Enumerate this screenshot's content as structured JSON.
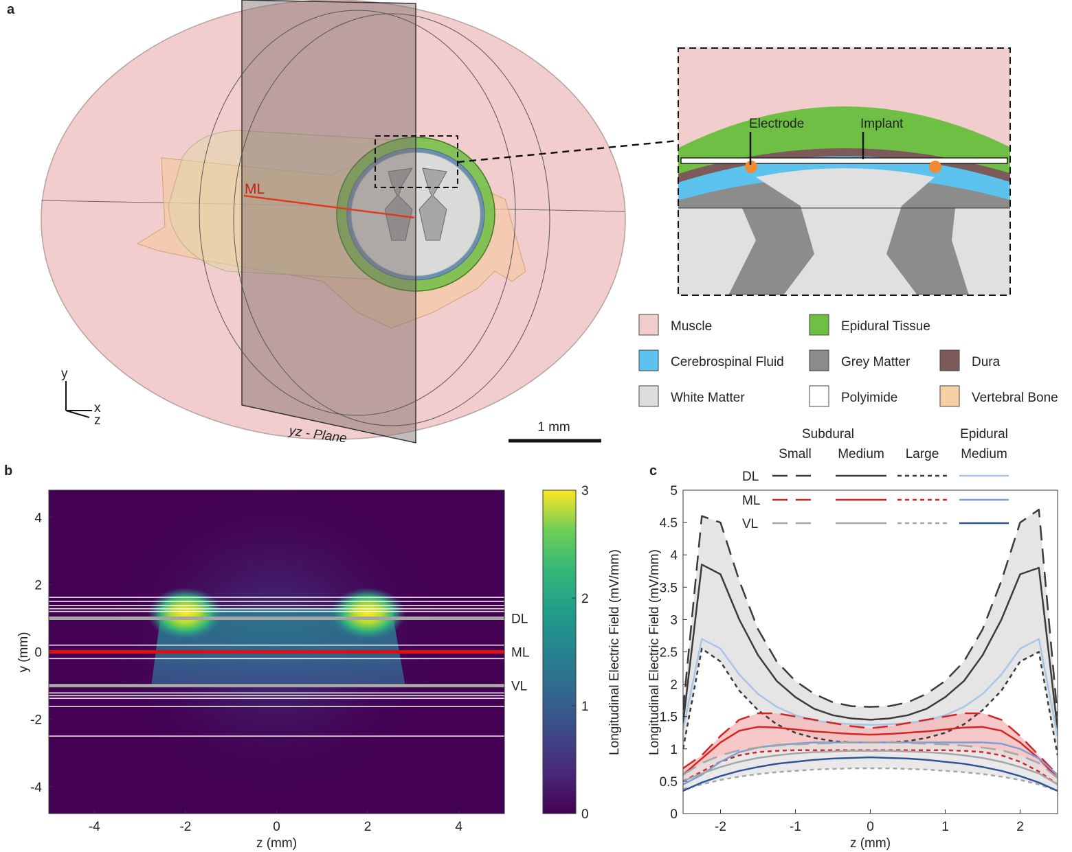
{
  "panel_labels": {
    "a": "a",
    "b": "b",
    "c": "c"
  },
  "panel_a": {
    "ml_label": "ML",
    "plane_label": "yz - Plane",
    "axes": {
      "y": "y",
      "x": "x",
      "z": "z"
    },
    "scalebar_label": "1 mm",
    "inset": {
      "electrode_label": "Electrode",
      "implant_label": "Implant"
    },
    "tissue_legend": [
      {
        "label": "Muscle",
        "color": "#f2cdcd"
      },
      {
        "label": "Epidural Tissue",
        "color": "#6fbf44"
      },
      {
        "label": "Cerebrospinal Fluid",
        "color": "#5cc3ef"
      },
      {
        "label": "Grey Matter",
        "color": "#8c8c8c"
      },
      {
        "label": "Dura",
        "color": "#7d5a5a"
      },
      {
        "label": "White Matter",
        "color": "#dddddd"
      },
      {
        "label": "Polyimide",
        "color": "#ffffff"
      },
      {
        "label": "Vertebral Bone",
        "color": "#f7cfa4"
      }
    ]
  },
  "chart_data": [
    {
      "id": "b",
      "type": "heatmap",
      "xlabel": "z (mm)",
      "ylabel": "y (mm)",
      "xlim": [
        -5,
        5
      ],
      "ylim": [
        -4.8,
        4.8
      ],
      "xticks": [
        "-4",
        "-2",
        "0",
        "2",
        "4"
      ],
      "xtick_values": [
        -4,
        -2,
        0,
        2,
        4
      ],
      "yticks": [
        "4",
        "2",
        "0",
        "-2",
        "-4"
      ],
      "ytick_values": [
        4,
        2,
        0,
        -2,
        -4
      ],
      "colorbar": {
        "label": "Longitudinal Electric Field (mV/mm)",
        "min": 0,
        "max": 3,
        "ticks": [
          "3",
          "2",
          "1",
          "0"
        ],
        "tick_values": [
          3,
          2,
          1,
          0
        ],
        "colormap": "viridis"
      },
      "hotspots": [
        {
          "z": -2,
          "y": 1.05
        },
        {
          "z": 2,
          "y": 1.05
        }
      ],
      "boundary_lines_y": [
        1.62,
        1.5,
        1.38,
        1.28,
        1.2,
        0.2,
        -0.2,
        -1.22,
        -1.3,
        -1.38,
        -1.62,
        -2.5
      ],
      "lines": [
        {
          "name": "DL",
          "y": 1.0,
          "color": "#a6a6a6"
        },
        {
          "name": "ML",
          "y": 0.0,
          "color": "#e01010"
        },
        {
          "name": "VL",
          "y": -1.0,
          "color": "#a6a6a6"
        }
      ]
    },
    {
      "id": "c",
      "type": "line",
      "xlabel": "z (mm)",
      "ylabel": "Longitudinal Electric Field (mV/mm)",
      "xlim": [
        -2.5,
        2.5
      ],
      "ylim": [
        0,
        5
      ],
      "xticks": [
        "-2",
        "-1",
        "0",
        "1",
        "2"
      ],
      "xtick_values": [
        -2,
        -1,
        0,
        1,
        2
      ],
      "yticks": [
        "5",
        "4.5",
        "4",
        "3.5",
        "3",
        "2.5",
        "2",
        "1.5",
        "1",
        "0.5",
        "0"
      ],
      "ytick_values": [
        5,
        4.5,
        4,
        3.5,
        3,
        2.5,
        2,
        1.5,
        1,
        0.5,
        0
      ],
      "legend": {
        "group_headers": [
          "Subdural",
          "Epidural"
        ],
        "column_headers": [
          "Small",
          "Medium",
          "Large",
          "Medium"
        ],
        "row_labels": [
          "DL",
          "ML",
          "VL"
        ],
        "placement": "top"
      },
      "x": [
        -2.5,
        -2.25,
        -2.0,
        -1.75,
        -1.5,
        -1.25,
        -1.0,
        -0.75,
        -0.5,
        -0.25,
        0.0,
        0.25,
        0.5,
        0.75,
        1.0,
        1.25,
        1.5,
        1.75,
        2.0,
        2.25,
        2.5
      ],
      "series": [
        {
          "row": "DL",
          "column": "Small",
          "color": "#3a3a3a",
          "style": "dashed",
          "values": [
            1.6,
            4.6,
            4.5,
            3.6,
            2.85,
            2.35,
            2.05,
            1.85,
            1.72,
            1.66,
            1.65,
            1.66,
            1.72,
            1.85,
            2.05,
            2.35,
            2.85,
            3.6,
            4.5,
            4.7,
            1.5
          ]
        },
        {
          "row": "DL",
          "column": "Medium",
          "color": "#3a3a3a",
          "style": "solid",
          "values": [
            1.4,
            3.85,
            3.7,
            3.0,
            2.45,
            2.05,
            1.8,
            1.62,
            1.52,
            1.47,
            1.45,
            1.47,
            1.52,
            1.62,
            1.8,
            2.05,
            2.45,
            3.0,
            3.7,
            3.8,
            1.3
          ]
        },
        {
          "row": "DL",
          "column": "Large",
          "color": "#3a3a3a",
          "style": "dotted",
          "values": [
            1.0,
            2.55,
            2.35,
            1.9,
            1.6,
            1.38,
            1.25,
            1.17,
            1.12,
            1.1,
            1.1,
            1.1,
            1.12,
            1.17,
            1.25,
            1.38,
            1.6,
            1.9,
            2.35,
            2.5,
            0.9
          ]
        },
        {
          "row": "DL",
          "column": "Epidural Medium",
          "color": "#a9c4e8",
          "style": "solid",
          "values": [
            1.3,
            2.7,
            2.55,
            2.15,
            1.85,
            1.65,
            1.52,
            1.44,
            1.4,
            1.38,
            1.37,
            1.38,
            1.4,
            1.44,
            1.52,
            1.65,
            1.85,
            2.15,
            2.55,
            2.7,
            1.2
          ]
        },
        {
          "row": "ML",
          "column": "Small",
          "color": "#d42424",
          "style": "dashed",
          "values": [
            0.7,
            0.9,
            1.2,
            1.45,
            1.55,
            1.55,
            1.5,
            1.45,
            1.4,
            1.35,
            1.32,
            1.35,
            1.4,
            1.45,
            1.5,
            1.55,
            1.55,
            1.45,
            1.2,
            0.9,
            0.6
          ]
        },
        {
          "row": "ML",
          "column": "Medium",
          "color": "#d42424",
          "style": "solid",
          "values": [
            0.6,
            0.85,
            1.1,
            1.28,
            1.34,
            1.33,
            1.3,
            1.27,
            1.25,
            1.23,
            1.22,
            1.23,
            1.25,
            1.27,
            1.3,
            1.33,
            1.34,
            1.28,
            1.1,
            0.85,
            0.55
          ]
        },
        {
          "row": "ML",
          "column": "Large",
          "color": "#d42424",
          "style": "dotted",
          "values": [
            0.5,
            0.65,
            0.8,
            0.9,
            0.95,
            0.97,
            0.98,
            0.98,
            0.98,
            0.98,
            0.98,
            0.98,
            0.98,
            0.98,
            0.98,
            0.97,
            0.95,
            0.9,
            0.8,
            0.65,
            0.45
          ]
        },
        {
          "row": "ML",
          "column": "Epidural Medium",
          "color": "#7a9fd8",
          "style": "solid",
          "values": [
            0.45,
            0.6,
            0.8,
            0.95,
            1.02,
            1.06,
            1.08,
            1.1,
            1.1,
            1.1,
            1.1,
            1.1,
            1.1,
            1.1,
            1.1,
            1.1,
            1.1,
            1.08,
            1.0,
            0.85,
            0.6
          ]
        },
        {
          "row": "VL",
          "column": "Small",
          "color": "#a6a6a6",
          "style": "dashed",
          "values": [
            0.6,
            0.78,
            0.9,
            0.98,
            1.02,
            1.05,
            1.07,
            1.08,
            1.09,
            1.1,
            1.1,
            1.1,
            1.09,
            1.08,
            1.07,
            1.05,
            1.02,
            0.98,
            0.9,
            0.78,
            0.55
          ]
        },
        {
          "row": "VL",
          "column": "Medium",
          "color": "#a6a6a6",
          "style": "solid",
          "values": [
            0.5,
            0.62,
            0.72,
            0.8,
            0.86,
            0.9,
            0.93,
            0.95,
            0.96,
            0.97,
            0.97,
            0.97,
            0.96,
            0.95,
            0.93,
            0.9,
            0.86,
            0.8,
            0.72,
            0.62,
            0.45
          ]
        },
        {
          "row": "VL",
          "column": "Large",
          "color": "#a6a6a6",
          "style": "dotted",
          "values": [
            0.38,
            0.45,
            0.52,
            0.57,
            0.61,
            0.64,
            0.66,
            0.68,
            0.69,
            0.7,
            0.7,
            0.7,
            0.69,
            0.68,
            0.66,
            0.64,
            0.61,
            0.57,
            0.52,
            0.45,
            0.35
          ]
        },
        {
          "row": "VL",
          "column": "Epidural Medium",
          "color": "#2f5597",
          "style": "solid",
          "values": [
            0.35,
            0.48,
            0.58,
            0.66,
            0.72,
            0.77,
            0.8,
            0.83,
            0.85,
            0.86,
            0.87,
            0.86,
            0.85,
            0.83,
            0.8,
            0.77,
            0.72,
            0.66,
            0.58,
            0.48,
            0.35
          ]
        }
      ],
      "bands": [
        {
          "row": "DL",
          "color": "#dcdcdc",
          "lower": "DL Large",
          "upper": "DL Small"
        },
        {
          "row": "ML",
          "color": "#f4b5b5",
          "lower": "ML Large",
          "upper": "ML Small"
        },
        {
          "row": "VL",
          "color": "#e2e2e2",
          "lower": "VL Large",
          "upper": "VL Small"
        }
      ]
    }
  ]
}
